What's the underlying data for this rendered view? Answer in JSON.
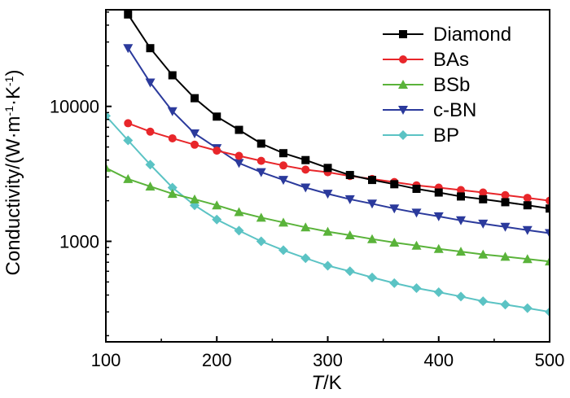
{
  "chart_data": {
    "type": "line",
    "title": "",
    "xlabel": "T/K",
    "xlabel_italic_part": "T",
    "xlabel_rest": "/K",
    "ylabel": "Conductivity/(W·m⁻¹·K⁻¹)",
    "ylabel_main": "Conductivity/(W·m",
    "ylabel_sup1": "-1",
    "ylabel_mid": "·K",
    "ylabel_sup2": "-1",
    "ylabel_end": ")",
    "y_scale": "log",
    "xlim": [
      100,
      500
    ],
    "ylim": [
      180,
      52000
    ],
    "x_ticks": [
      100,
      200,
      300,
      400,
      500
    ],
    "x_tick_labels": [
      "100",
      "200",
      "300",
      "400",
      "500"
    ],
    "y_ticks": [
      1000,
      10000
    ],
    "y_tick_labels": [
      "1000",
      "10000"
    ],
    "legend_position": "top-right",
    "series": [
      {
        "name": "Diamond",
        "color": "#000000",
        "marker": "square",
        "x": [
          120,
          140,
          160,
          180,
          200,
          220,
          240,
          260,
          280,
          300,
          320,
          340,
          360,
          380,
          400,
          420,
          440,
          460,
          480,
          500
        ],
        "y": [
          48000,
          27000,
          17000,
          11500,
          8400,
          6700,
          5300,
          4500,
          4000,
          3500,
          3100,
          2850,
          2650,
          2450,
          2300,
          2150,
          2050,
          1950,
          1850,
          1750
        ]
      },
      {
        "name": "BAs",
        "color": "#e8262a",
        "marker": "circle",
        "x": [
          120,
          140,
          160,
          180,
          200,
          220,
          240,
          260,
          280,
          300,
          320,
          340,
          360,
          380,
          400,
          420,
          440,
          460,
          480,
          500
        ],
        "y": [
          7500,
          6500,
          5800,
          5200,
          4700,
          4300,
          3950,
          3650,
          3400,
          3250,
          3050,
          2900,
          2750,
          2600,
          2500,
          2400,
          2300,
          2200,
          2100,
          2000
        ]
      },
      {
        "name": "BSb",
        "color": "#5ab33a",
        "marker": "triangle-up",
        "x": [
          100,
          120,
          140,
          160,
          180,
          200,
          220,
          240,
          260,
          280,
          300,
          320,
          340,
          360,
          380,
          400,
          420,
          440,
          460,
          480,
          500
        ],
        "y": [
          3500,
          2900,
          2550,
          2250,
          2050,
          1850,
          1650,
          1500,
          1380,
          1270,
          1180,
          1110,
          1040,
          980,
          930,
          880,
          840,
          800,
          770,
          740,
          710
        ]
      },
      {
        "name": "c-BN",
        "color": "#2b3a9c",
        "marker": "triangle-down",
        "x": [
          120,
          140,
          160,
          180,
          200,
          220,
          240,
          260,
          280,
          300,
          320,
          340,
          360,
          380,
          400,
          420,
          440,
          460,
          480,
          500
        ],
        "y": [
          27000,
          15000,
          9200,
          6300,
          4900,
          3800,
          3250,
          2850,
          2500,
          2250,
          2050,
          1900,
          1750,
          1630,
          1530,
          1430,
          1350,
          1280,
          1210,
          1150
        ]
      },
      {
        "name": "BP",
        "color": "#5bc3c4",
        "marker": "diamond",
        "x": [
          100,
          120,
          140,
          160,
          180,
          200,
          220,
          240,
          260,
          280,
          300,
          320,
          340,
          360,
          380,
          400,
          420,
          440,
          460,
          480,
          500
        ],
        "y": [
          8500,
          5600,
          3700,
          2500,
          1850,
          1450,
          1200,
          1000,
          860,
          750,
          660,
          600,
          540,
          490,
          450,
          420,
          390,
          360,
          340,
          320,
          300
        ]
      }
    ]
  }
}
